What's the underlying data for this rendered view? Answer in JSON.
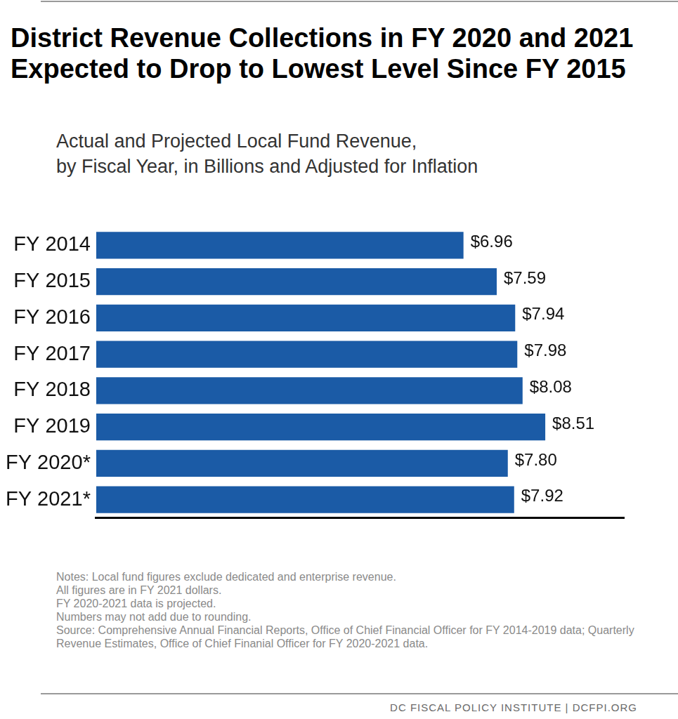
{
  "chart_data": {
    "type": "bar",
    "orientation": "horizontal",
    "title": "District Revenue Collections in FY 2020 and 2021 Expected to Drop to Lowest Level Since FY 2015",
    "subtitle": [
      "Actual and Projected Local Fund Revenue,",
      "by Fiscal Year, in Billions and Adjusted for Inflation"
    ],
    "categories": [
      "FY 2014",
      "FY 2015",
      "FY 2016",
      "FY 2017",
      "FY 2018",
      "FY 2019",
      "FY 2020*",
      "FY 2021*"
    ],
    "values": [
      6.96,
      7.59,
      7.94,
      7.98,
      8.08,
      8.51,
      7.8,
      7.92
    ],
    "value_labels": [
      "$6.96",
      "$7.59",
      "$7.94",
      "$7.98",
      "$8.08",
      "$8.51",
      "$7.80",
      "$7.92"
    ],
    "color": "#1b5ba6",
    "xlim": [
      0,
      10
    ],
    "grid": false,
    "data_labels": true,
    "tick_labels": "y",
    "notes": [
      "Notes: Local fund figures exclude dedicated and enterprise revenue.",
      "All figures are in FY 2021 dollars.",
      "FY 2020-2021 data is projected.",
      "Numbers may not add due to rounding.",
      "Source: Comprehensive Annual Financial Reports, Office of Chief Financial Officer for FY 2014-2019 data; Quarterly Revenue Estimates, Office of Chief Finanial Officer for FY 2020-2021 data."
    ],
    "footer": "DC FISCAL POLICY INSTITUTE | DCFPI.ORG"
  }
}
